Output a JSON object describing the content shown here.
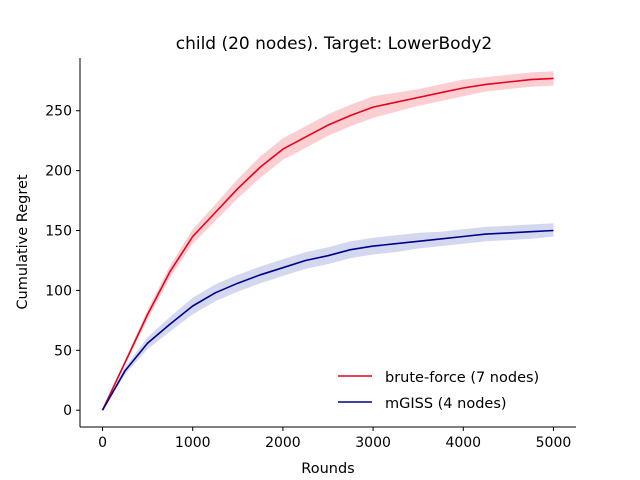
{
  "chart_data": {
    "type": "line",
    "title": "child (20 nodes). Target: LowerBody2",
    "xlabel": "Rounds",
    "ylabel": "Cumulative Regret",
    "xlim": [
      -250,
      5250
    ],
    "ylim": [
      -14,
      294
    ],
    "xticks": [
      0,
      1000,
      2000,
      3000,
      4000,
      5000
    ],
    "yticks": [
      0,
      50,
      100,
      150,
      200,
      250
    ],
    "grid": false,
    "legend_position": "lower-right",
    "series": [
      {
        "name": "brute-force (7 nodes)",
        "color": "#e8001c",
        "band_color": "#f7a8ad",
        "x": [
          0,
          250,
          500,
          750,
          1000,
          1250,
          1500,
          1750,
          2000,
          2250,
          2500,
          2750,
          3000,
          3250,
          3500,
          3750,
          4000,
          4250,
          4500,
          4750,
          5000
        ],
        "y": [
          0,
          40,
          80,
          116,
          145,
          165,
          185,
          203,
          218,
          228,
          238,
          246,
          253,
          257,
          261,
          265,
          269,
          272,
          274,
          276,
          277
        ],
        "lower": [
          0,
          38,
          76,
          111,
          139,
          158,
          177,
          194,
          209,
          219,
          229,
          237,
          244,
          249,
          254,
          258,
          262,
          266,
          268,
          270,
          271
        ],
        "upper": [
          0,
          42,
          84,
          121,
          151,
          172,
          193,
          212,
          227,
          237,
          247,
          255,
          262,
          265,
          268,
          272,
          276,
          278,
          280,
          282,
          283
        ]
      },
      {
        "name": "mGISS (4 nodes)",
        "color": "#00008b",
        "band_color": "#b0b8e0",
        "x": [
          0,
          250,
          500,
          750,
          1000,
          1250,
          1500,
          1750,
          2000,
          2250,
          2500,
          2750,
          3000,
          3250,
          3500,
          3750,
          4000,
          4250,
          4500,
          4750,
          5000
        ],
        "y": [
          0,
          33,
          56,
          72,
          87,
          98,
          106,
          113,
          119,
          125,
          129,
          134,
          137,
          139,
          141,
          143,
          145,
          147,
          148,
          149,
          150
        ],
        "lower": [
          0,
          30,
          51,
          66,
          80,
          91,
          99,
          106,
          112,
          118,
          122,
          127,
          130,
          132,
          135,
          137,
          139,
          141,
          142,
          143,
          145
        ],
        "upper": [
          0,
          36,
          61,
          78,
          94,
          105,
          113,
          120,
          126,
          132,
          136,
          141,
          144,
          146,
          148,
          149,
          151,
          153,
          154,
          155,
          156
        ]
      }
    ]
  }
}
